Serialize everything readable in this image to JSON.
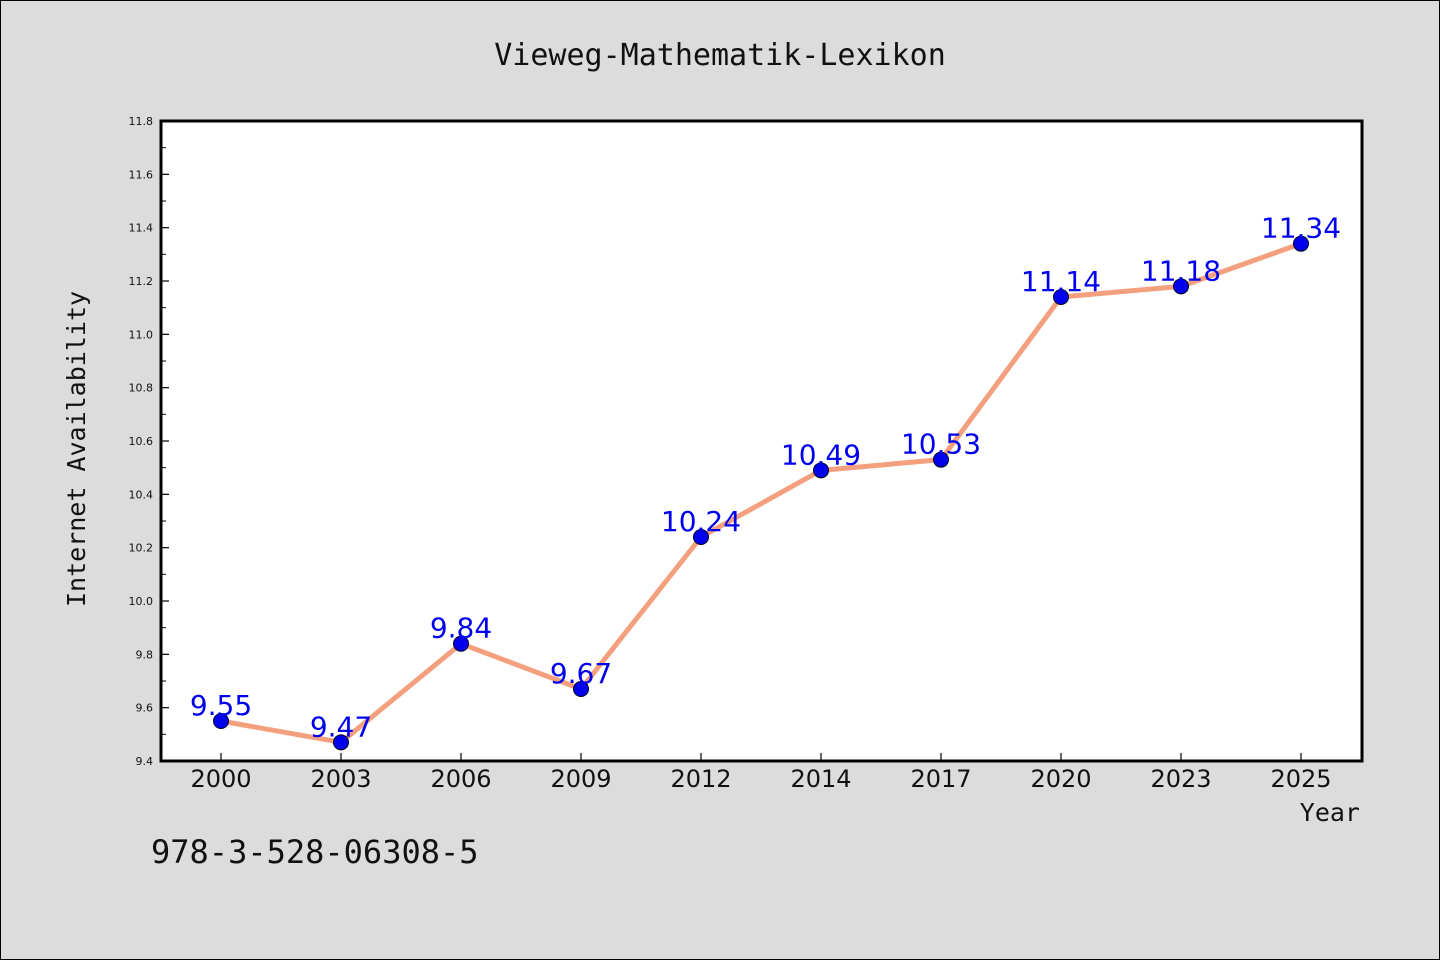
{
  "chart_data": {
    "type": "line",
    "title": "Vieweg-Mathematik-Lexikon",
    "xlabel": "Year",
    "ylabel": "Internet Availability",
    "categories": [
      "2000",
      "2003",
      "2006",
      "2009",
      "2012",
      "2014",
      "2017",
      "2020",
      "2023",
      "2025"
    ],
    "series": [
      {
        "values": [
          9.55,
          9.47,
          9.84,
          9.67,
          10.24,
          10.49,
          10.53,
          11.14,
          11.18,
          11.34
        ]
      }
    ],
    "data_labels": [
      "9.55",
      "9.47",
      "9.84",
      "9.67",
      "10.24",
      "10.49",
      "10.53",
      "11.14",
      "11.18",
      "11.34"
    ],
    "ylim": [
      9.4,
      11.8
    ],
    "y_ticks": [
      "9.4",
      "9.6",
      "9.8",
      "10.0",
      "10.2",
      "10.4",
      "10.6",
      "10.8",
      "11.0",
      "11.2",
      "11.4",
      "11.6",
      "11.8"
    ],
    "grid": false,
    "colors": {
      "line": "#f4a07f",
      "marker": "#0000ee",
      "label": "#0000ee"
    }
  },
  "footer": {
    "code": "978-3-528-06308-5"
  }
}
